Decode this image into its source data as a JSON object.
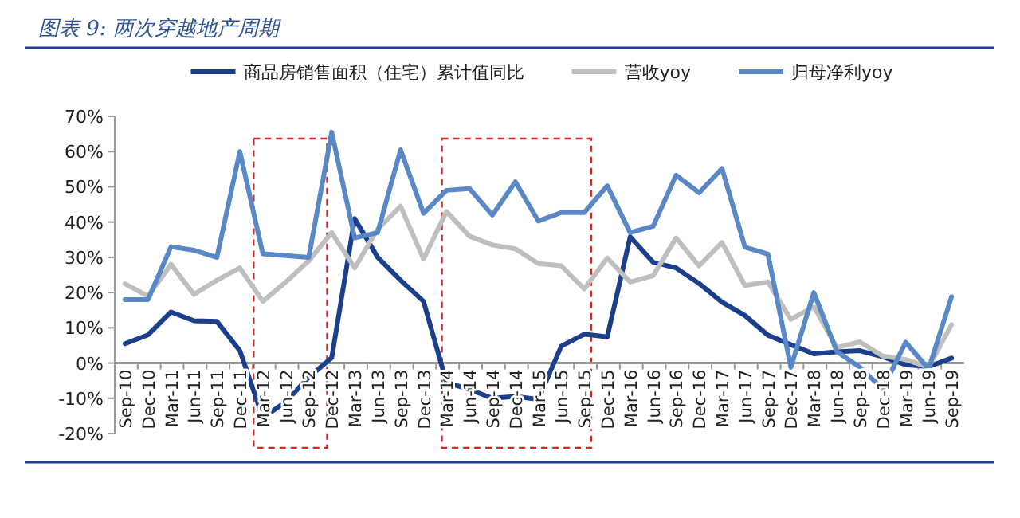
{
  "chart_data": {
    "type": "line",
    "title": "图表 9: 两次穿越地产周期",
    "categories": [
      "Sep-10",
      "Dec-10",
      "Mar-11",
      "Jun-11",
      "Sep-11",
      "Dec-11",
      "Mar-12",
      "Jun-12",
      "Sep-12",
      "Dec-12",
      "Mar-13",
      "Jun-13",
      "Sep-13",
      "Dec-13",
      "Mar-14",
      "Jun-14",
      "Sep-14",
      "Dec-14",
      "Mar-15",
      "Jun-15",
      "Sep-15",
      "Dec-15",
      "Mar-16",
      "Jun-16",
      "Sep-16",
      "Dec-16",
      "Mar-17",
      "Jun-17",
      "Sep-17",
      "Dec-17",
      "Mar-18",
      "Jun-18",
      "Sep-18",
      "Dec-18",
      "Mar-19",
      "Jun-19",
      "Sep-19"
    ],
    "series": [
      {
        "name": "商品房销售面积（住宅）累计值同比",
        "color": "#1b3f8b",
        "values": [
          5.5,
          8,
          14.5,
          12,
          11.8,
          3.5,
          -15.5,
          -11,
          -4,
          1.5,
          41,
          30,
          23.5,
          17.5,
          -5.5,
          -7.5,
          -10,
          -9.5,
          -10.3,
          4.8,
          8.2,
          7.4,
          35.8,
          28.6,
          27,
          22.6,
          17.3,
          13.5,
          7.9,
          5.2,
          2.6,
          3.2,
          3.5,
          1.8,
          -0.5,
          -1,
          1.4
        ]
      },
      {
        "name": "营收yoy",
        "color": "#bfbfbf",
        "values": [
          22.5,
          19,
          28,
          19.5,
          23.5,
          27,
          17.5,
          23,
          29,
          37,
          27,
          38,
          44.5,
          29.5,
          43,
          36,
          33.5,
          32.4,
          28.2,
          27.6,
          21,
          29.8,
          23,
          24.8,
          35.5,
          27.6,
          34.2,
          22,
          23,
          12.4,
          16,
          4.4,
          6,
          2,
          1,
          -1.2,
          10.9
        ]
      },
      {
        "name": "归母净利yoy",
        "color": "#5a87c6",
        "values": [
          18,
          18,
          33,
          32,
          30,
          60,
          31,
          30.5,
          30,
          65.5,
          35.5,
          37,
          60.5,
          42.5,
          49,
          49.5,
          42,
          51.4,
          40.3,
          42.7,
          42.7,
          50.3,
          37,
          38.8,
          53.3,
          48.3,
          55.2,
          32.9,
          30.9,
          -1.2,
          20,
          3.3,
          -1.2,
          -7.3,
          5.9,
          -1.7,
          18.8
        ]
      }
    ],
    "ylim": [
      -20,
      70
    ],
    "yticks": [
      {
        "value": -20,
        "label": "-20%"
      },
      {
        "value": -10,
        "label": "-10%"
      },
      {
        "value": 0,
        "label": "0%"
      },
      {
        "value": 10,
        "label": "10%"
      },
      {
        "value": 20,
        "label": "20%"
      },
      {
        "value": 30,
        "label": "30%"
      },
      {
        "value": 40,
        "label": "40%"
      },
      {
        "value": 50,
        "label": "50%"
      },
      {
        "value": 60,
        "label": "60%"
      },
      {
        "value": 70,
        "label": "70%"
      }
    ],
    "legend": "top",
    "grid": false,
    "marker": "none",
    "line_style": "solid"
  }
}
